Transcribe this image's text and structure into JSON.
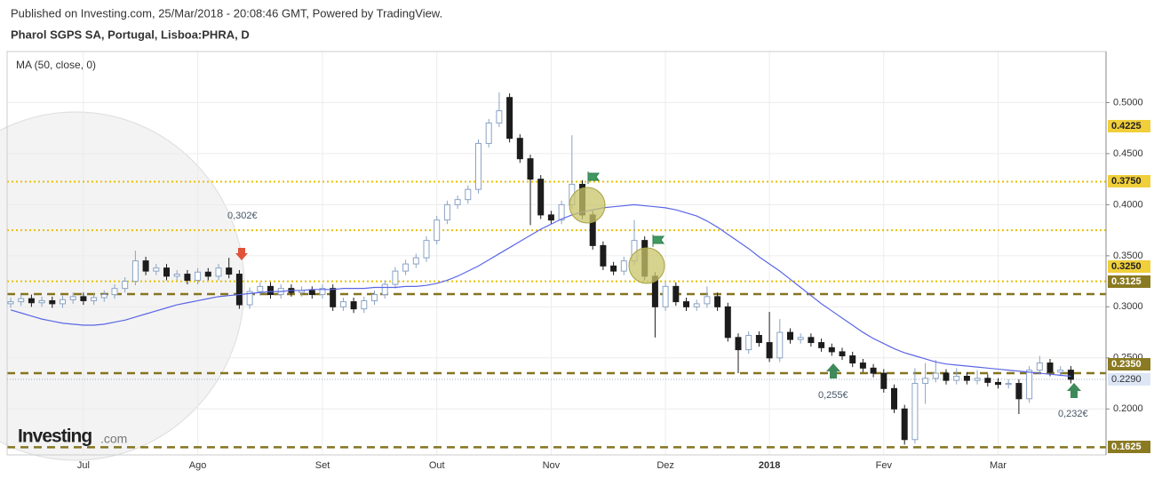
{
  "chart_data": {
    "type": "candlestick",
    "source": "Published on Investing.com, 25/Mar/2018 - 20:08:46 GMT, Powered by TradingView.",
    "title": "Pharol SGPS SA, Portugal, Lisboa:PHRA, D",
    "logo": "Investing",
    "logo_suffix": ".com",
    "categories": [
      null,
      null,
      null,
      null,
      null,
      null,
      null,
      "Jul",
      null,
      null,
      null,
      null,
      null,
      null,
      null,
      null,
      null,
      null,
      "Ago",
      null,
      null,
      null,
      null,
      null,
      null,
      null,
      null,
      null,
      null,
      null,
      "Set",
      null,
      null,
      null,
      null,
      null,
      null,
      null,
      null,
      null,
      null,
      "Out",
      null,
      null,
      null,
      null,
      null,
      null,
      null,
      null,
      null,
      null,
      "Nov",
      null,
      null,
      null,
      null,
      null,
      null,
      null,
      null,
      null,
      null,
      "Dez",
      null,
      null,
      null,
      null,
      null,
      null,
      null,
      null,
      null,
      "2018",
      null,
      null,
      null,
      null,
      null,
      null,
      null,
      null,
      null,
      null,
      "Fev",
      null,
      null,
      null,
      null,
      null,
      null,
      null,
      null,
      null,
      null,
      "Mar",
      null,
      null,
      null,
      null,
      null,
      null,
      null
    ],
    "open": [
      0.303,
      0.305,
      0.308,
      0.304,
      0.306,
      0.303,
      0.307,
      0.31,
      0.306,
      0.309,
      0.312,
      0.318,
      0.325,
      0.345,
      0.335,
      0.338,
      0.33,
      0.332,
      0.326,
      0.334,
      0.33,
      0.338,
      0.332,
      0.302,
      0.315,
      0.32,
      0.312,
      0.318,
      0.314,
      0.316,
      0.312,
      0.318,
      0.3,
      0.305,
      0.298,
      0.306,
      0.312,
      0.322,
      0.335,
      0.342,
      0.348,
      0.365,
      0.385,
      0.4,
      0.405,
      0.415,
      0.46,
      0.48,
      0.505,
      0.465,
      0.445,
      0.425,
      0.39,
      0.385,
      0.4,
      0.42,
      0.39,
      0.36,
      0.34,
      0.335,
      0.345,
      0.365,
      0.33,
      0.3,
      0.32,
      0.305,
      0.3,
      0.303,
      0.31,
      0.3,
      0.27,
      0.258,
      0.272,
      0.265,
      0.25,
      0.275,
      0.268,
      0.27,
      0.265,
      0.26,
      0.256,
      0.252,
      0.245,
      0.24,
      0.235,
      0.22,
      0.2,
      0.17,
      0.225,
      0.23,
      0.235,
      0.228,
      0.232,
      0.228,
      0.23,
      0.226,
      0.224,
      0.225,
      0.21,
      0.238,
      0.245,
      0.236,
      0.238
    ],
    "high": [
      0.309,
      0.312,
      0.312,
      0.31,
      0.31,
      0.311,
      0.314,
      0.314,
      0.313,
      0.316,
      0.322,
      0.329,
      0.355,
      0.349,
      0.342,
      0.342,
      0.336,
      0.336,
      0.338,
      0.338,
      0.342,
      0.348,
      0.336,
      0.319,
      0.324,
      0.324,
      0.322,
      0.322,
      0.32,
      0.32,
      0.322,
      0.322,
      0.309,
      0.309,
      0.31,
      0.316,
      0.326,
      0.339,
      0.346,
      0.352,
      0.369,
      0.389,
      0.404,
      0.409,
      0.419,
      0.464,
      0.484,
      0.51,
      0.509,
      0.469,
      0.449,
      0.429,
      0.394,
      0.404,
      0.468,
      0.424,
      0.394,
      0.364,
      0.344,
      0.349,
      0.385,
      0.369,
      0.334,
      0.324,
      0.324,
      0.309,
      0.307,
      0.32,
      0.314,
      0.304,
      0.274,
      0.276,
      0.276,
      0.295,
      0.288,
      0.279,
      0.274,
      0.274,
      0.269,
      0.264,
      0.26,
      0.256,
      0.249,
      0.244,
      0.239,
      0.224,
      0.204,
      0.24,
      0.245,
      0.248,
      0.239,
      0.24,
      0.236,
      0.238,
      0.234,
      0.23,
      0.229,
      0.229,
      0.242,
      0.252,
      0.249,
      0.242,
      0.242
    ],
    "low": [
      0.299,
      0.301,
      0.3,
      0.3,
      0.299,
      0.299,
      0.303,
      0.302,
      0.302,
      0.305,
      0.308,
      0.314,
      0.321,
      0.331,
      0.331,
      0.326,
      0.326,
      0.322,
      0.322,
      0.326,
      0.326,
      0.328,
      0.298,
      0.298,
      0.311,
      0.308,
      0.308,
      0.31,
      0.31,
      0.308,
      0.308,
      0.296,
      0.296,
      0.294,
      0.294,
      0.302,
      0.308,
      0.318,
      0.331,
      0.338,
      0.344,
      0.361,
      0.381,
      0.396,
      0.401,
      0.411,
      0.456,
      0.476,
      0.461,
      0.441,
      0.38,
      0.386,
      0.381,
      0.381,
      0.396,
      0.386,
      0.356,
      0.336,
      0.331,
      0.331,
      0.341,
      0.326,
      0.27,
      0.296,
      0.301,
      0.296,
      0.296,
      0.299,
      0.296,
      0.266,
      0.235,
      0.254,
      0.261,
      0.246,
      0.246,
      0.264,
      0.264,
      0.261,
      0.256,
      0.252,
      0.248,
      0.241,
      0.236,
      0.231,
      0.216,
      0.196,
      0.165,
      0.166,
      0.205,
      0.226,
      0.224,
      0.224,
      0.224,
      0.224,
      0.222,
      0.22,
      0.22,
      0.195,
      0.206,
      0.234,
      0.232,
      0.232,
      0.225
    ],
    "close": [
      0.305,
      0.308,
      0.304,
      0.306,
      0.303,
      0.307,
      0.31,
      0.306,
      0.309,
      0.312,
      0.318,
      0.325,
      0.345,
      0.335,
      0.338,
      0.33,
      0.332,
      0.326,
      0.334,
      0.33,
      0.338,
      0.332,
      0.302,
      0.315,
      0.32,
      0.312,
      0.318,
      0.314,
      0.316,
      0.312,
      0.318,
      0.3,
      0.305,
      0.298,
      0.306,
      0.312,
      0.322,
      0.335,
      0.342,
      0.348,
      0.365,
      0.385,
      0.4,
      0.405,
      0.415,
      0.46,
      0.48,
      0.492,
      0.465,
      0.445,
      0.425,
      0.39,
      0.385,
      0.4,
      0.42,
      0.39,
      0.36,
      0.34,
      0.335,
      0.345,
      0.365,
      0.33,
      0.3,
      0.32,
      0.305,
      0.3,
      0.303,
      0.31,
      0.3,
      0.27,
      0.258,
      0.272,
      0.265,
      0.25,
      0.275,
      0.268,
      0.27,
      0.265,
      0.26,
      0.256,
      0.252,
      0.245,
      0.24,
      0.235,
      0.22,
      0.2,
      0.17,
      0.225,
      0.23,
      0.235,
      0.228,
      0.232,
      0.228,
      0.23,
      0.226,
      0.224,
      0.225,
      0.21,
      0.238,
      0.245,
      0.236,
      0.238,
      0.229
    ],
    "up_color": "#ffffff",
    "up_border": "#8aa3c4",
    "down_color": "#1c1c1c",
    "series": [
      {
        "name": "MA (50, close, 0)",
        "color": "#5a66e6",
        "values": [
          0.297,
          0.294,
          0.291,
          0.288,
          0.286,
          0.284,
          0.283,
          0.282,
          0.282,
          0.283,
          0.285,
          0.287,
          0.29,
          0.293,
          0.296,
          0.299,
          0.302,
          0.304,
          0.306,
          0.308,
          0.31,
          0.311,
          0.312,
          0.313,
          0.314,
          0.315,
          0.315,
          0.316,
          0.316,
          0.317,
          0.317,
          0.317,
          0.318,
          0.318,
          0.318,
          0.319,
          0.319,
          0.319,
          0.32,
          0.32,
          0.321,
          0.323,
          0.326,
          0.33,
          0.335,
          0.34,
          0.346,
          0.352,
          0.358,
          0.364,
          0.37,
          0.376,
          0.381,
          0.386,
          0.39,
          0.393,
          0.395,
          0.397,
          0.398,
          0.399,
          0.4,
          0.399,
          0.398,
          0.397,
          0.395,
          0.392,
          0.389,
          0.384,
          0.378,
          0.371,
          0.364,
          0.357,
          0.349,
          0.342,
          0.335,
          0.327,
          0.319,
          0.311,
          0.303,
          0.296,
          0.289,
          0.282,
          0.275,
          0.269,
          0.264,
          0.259,
          0.255,
          0.252,
          0.249,
          0.246,
          0.244,
          0.243,
          0.242,
          0.241,
          0.24,
          0.239,
          0.238,
          0.237,
          0.236,
          0.235,
          0.234,
          0.233,
          0.232
        ]
      }
    ],
    "ylim": [
      0.155,
      0.55
    ],
    "yticks": [
      {
        "value": 0.5,
        "label": "0.5000"
      },
      {
        "value": 0.45,
        "label": "0.4500"
      },
      {
        "value": 0.4,
        "label": "0.4000"
      },
      {
        "value": 0.35,
        "label": "0.3500"
      },
      {
        "value": 0.3,
        "label": "0.3000"
      },
      {
        "value": 0.25,
        "label": "0.2500"
      },
      {
        "value": 0.2,
        "label": "0.2000"
      }
    ],
    "grid": true,
    "levels": [
      {
        "value": 0.4225,
        "label": "0.4225",
        "style": "dotted",
        "color": "#e8c000"
      },
      {
        "value": 0.375,
        "label": "0.3750",
        "style": "dotted",
        "color": "#e8c000"
      },
      {
        "value": 0.325,
        "label": "0.3250",
        "style": "dotted",
        "color": "#e8c000"
      },
      {
        "value": 0.3125,
        "label": "0.3125",
        "style": "dashed",
        "color": "#857420"
      },
      {
        "value": 0.235,
        "label": "0.2350",
        "style": "dashed",
        "color": "#857420"
      },
      {
        "value": 0.1625,
        "label": "0.1625",
        "style": "dashed",
        "color": "#857420"
      }
    ],
    "last_price": {
      "value": 0.229,
      "label": "0.2290",
      "color": "#dde6f5"
    },
    "annotations": [
      "0,302€",
      "0,255€",
      "0,232€"
    ]
  }
}
